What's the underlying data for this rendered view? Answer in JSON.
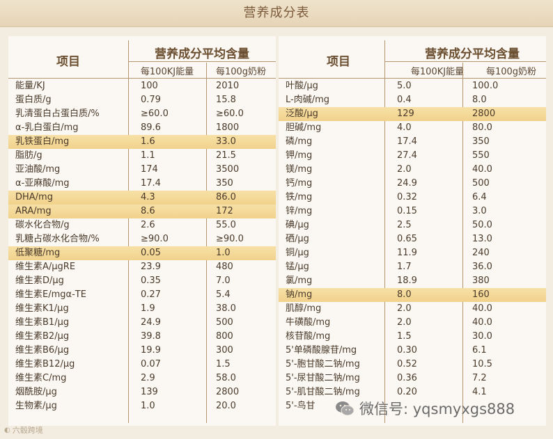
{
  "title": "营养成分表",
  "header": {
    "item": "项目",
    "group": "营养成分平均含量",
    "per_energy": "每100KJ能量",
    "per_powder": "每100g奶粉"
  },
  "left_rows": [
    {
      "name": "能量/KJ",
      "v1": "100",
      "v2": "2010",
      "hl": false
    },
    {
      "name": "蛋白质/g",
      "v1": "0.79",
      "v2": "15.8",
      "hl": false
    },
    {
      "name": "乳清蛋白占蛋白质/%",
      "v1": "≥60.0",
      "v2": "≥60.0",
      "hl": false
    },
    {
      "name": "α-乳白蛋白/mg",
      "v1": "89.6",
      "v2": "1800",
      "hl": false
    },
    {
      "name": "乳铁蛋白/mg",
      "v1": "1.6",
      "v2": "33.0",
      "hl": true
    },
    {
      "name": "脂肪/g",
      "v1": "1.1",
      "v2": "21.5",
      "hl": false
    },
    {
      "name": "亚油酸/mg",
      "v1": "174",
      "v2": "3500",
      "hl": false
    },
    {
      "name": "α-亚麻酸/mg",
      "v1": "17.4",
      "v2": "350",
      "hl": false
    },
    {
      "name": "DHA/mg",
      "v1": "4.3",
      "v2": "86.0",
      "hl": true
    },
    {
      "name": "ARA/mg",
      "v1": "8.6",
      "v2": "172",
      "hl": true
    },
    {
      "name": "碳水化合物/g",
      "v1": "2.6",
      "v2": "55.0",
      "hl": false
    },
    {
      "name": "乳糖占碳水化合物/%",
      "v1": "≥90.0",
      "v2": "≥90.0",
      "hl": false
    },
    {
      "name": "低聚糖/mg",
      "v1": "0.05",
      "v2": "1.0",
      "hl": true
    },
    {
      "name": "维生素A/μgRE",
      "v1": "23.9",
      "v2": "480",
      "hl": false
    },
    {
      "name": "维生素D/μg",
      "v1": "0.35",
      "v2": "7.0",
      "hl": false
    },
    {
      "name": "维生素E/mgα-TE",
      "v1": "0.27",
      "v2": "5.4",
      "hl": false
    },
    {
      "name": "维生素K1/μg",
      "v1": "1.9",
      "v2": "38.0",
      "hl": false
    },
    {
      "name": "维生素B1/μg",
      "v1": "24.9",
      "v2": "500",
      "hl": false
    },
    {
      "name": "维生素B2/μg",
      "v1": "39.8",
      "v2": "800",
      "hl": false
    },
    {
      "name": "维生素B6/μg",
      "v1": "19.9",
      "v2": "300",
      "hl": false
    },
    {
      "name": "维生素B12/μg",
      "v1": "0.07",
      "v2": "1.5",
      "hl": false
    },
    {
      "name": "维生素C/mg",
      "v1": "2.9",
      "v2": "58.0",
      "hl": false
    },
    {
      "name": "烟酰胺/μg",
      "v1": "139",
      "v2": "2800",
      "hl": false
    },
    {
      "name": "生物素/μg",
      "v1": "1.0",
      "v2": "20.0",
      "hl": false
    }
  ],
  "right_rows": [
    {
      "name": "叶酸/μg",
      "v1": "5.0",
      "v2": "100.0",
      "hl": false
    },
    {
      "name": "L-肉碱/mg",
      "v1": "0.4",
      "v2": "8.0",
      "hl": false
    },
    {
      "name": "泛酸/μg",
      "v1": "129",
      "v2": "2800",
      "hl": true
    },
    {
      "name": "胆碱/mg",
      "v1": "4.0",
      "v2": "80.0",
      "hl": false
    },
    {
      "name": "磷/mg",
      "v1": "17.4",
      "v2": "350",
      "hl": false
    },
    {
      "name": "钾/mg",
      "v1": "27.4",
      "v2": "550",
      "hl": false
    },
    {
      "name": "镁/mg",
      "v1": "2.0",
      "v2": "40.0",
      "hl": false
    },
    {
      "name": "钙/mg",
      "v1": "24.9",
      "v2": "500",
      "hl": false
    },
    {
      "name": "铁/mg",
      "v1": "0.32",
      "v2": "6.4",
      "hl": false
    },
    {
      "name": "锌/mg",
      "v1": "0.15",
      "v2": "3.0",
      "hl": false
    },
    {
      "name": "碘/μg",
      "v1": "2.5",
      "v2": "50.0",
      "hl": false
    },
    {
      "name": "硒/μg",
      "v1": "0.65",
      "v2": "13.0",
      "hl": false
    },
    {
      "name": "铜/μg",
      "v1": "11.9",
      "v2": "240",
      "hl": false
    },
    {
      "name": "锰/μg",
      "v1": "1.7",
      "v2": "36.0",
      "hl": false
    },
    {
      "name": "氯/mg",
      "v1": "18.9",
      "v2": "380",
      "hl": false
    },
    {
      "name": "钠/mg",
      "v1": "8.0",
      "v2": "160",
      "hl": true
    },
    {
      "name": "肌醇/mg",
      "v1": "2.0",
      "v2": "40.0",
      "hl": false
    },
    {
      "name": "牛磺酸/mg",
      "v1": "2.0",
      "v2": "40.0",
      "hl": false
    },
    {
      "name": "核苷酸/mg",
      "v1": "1.5",
      "v2": "30.0",
      "hl": false
    },
    {
      "name": "5'单磷酸腺苷/mg",
      "v1": "0.30",
      "v2": "6.1",
      "hl": false
    },
    {
      "name": "5'-胞甘酸二钠/mg",
      "v1": "0.52",
      "v2": "10.5",
      "hl": false
    },
    {
      "name": "5'-尿甘酸二钠/mg",
      "v1": "0.36",
      "v2": "7.2",
      "hl": false
    },
    {
      "name": "5'-肌甘酸二钠/mg",
      "v1": "0.20",
      "v2": "4.1",
      "hl": false
    },
    {
      "name": "5'-鸟甘",
      "v1": "",
      "v2": "",
      "hl": false
    }
  ],
  "watermark": {
    "text": "微信号: yqsmyxgs888",
    "icon": "wechat-icon"
  },
  "brand_logo": "六毂跨境",
  "colors": {
    "highlight": "#f3d894",
    "line": "#b39670",
    "title_bg": "#e9d9bd"
  }
}
